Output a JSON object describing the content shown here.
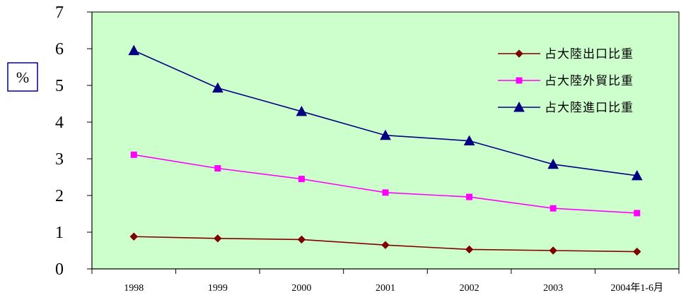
{
  "chart_data": {
    "type": "line",
    "ylabel": "%",
    "categories": [
      "1998",
      "1999",
      "2000",
      "2001",
      "2002",
      "2003",
      "2004年1-6月"
    ],
    "ylim": [
      0,
      7
    ],
    "yticks": [
      0,
      1,
      2,
      3,
      4,
      5,
      6,
      7
    ],
    "grid": false,
    "legend_position": "top-right",
    "colors": {
      "plot_background": "#ccffcc",
      "axis": "#000000"
    },
    "series": [
      {
        "name": "占大陸出口比重",
        "color": "#800000",
        "marker": "diamond",
        "values": [
          0.88,
          0.83,
          0.8,
          0.65,
          0.53,
          0.5,
          0.47
        ]
      },
      {
        "name": "占大陸外貿比重",
        "color": "#ff00ff",
        "marker": "square",
        "values": [
          3.11,
          2.74,
          2.45,
          2.08,
          1.96,
          1.65,
          1.52
        ]
      },
      {
        "name": "占大陸進口比重",
        "color": "#000080",
        "marker": "triangle",
        "values": [
          5.95,
          4.93,
          4.29,
          3.64,
          3.49,
          2.85,
          2.54
        ]
      }
    ]
  }
}
